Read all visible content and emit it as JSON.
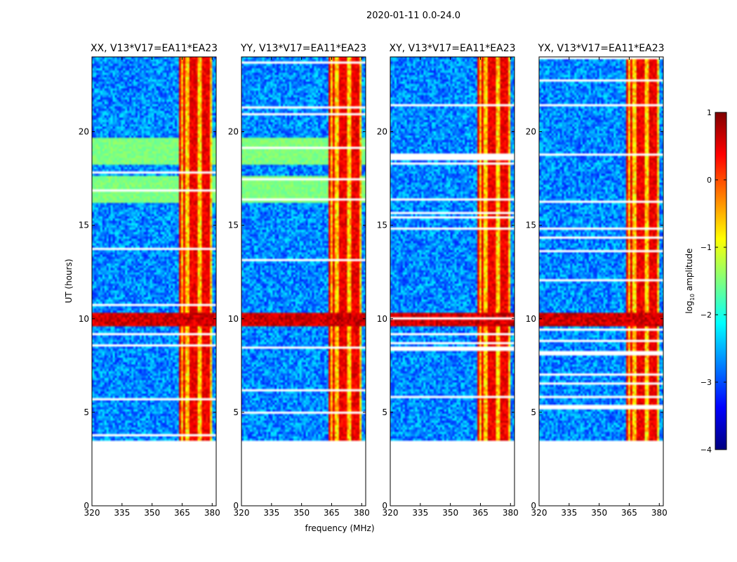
{
  "chart_data": {
    "type": "heatmap",
    "suptitle": "2020-01-11 0.0-24.0",
    "xlabel": "frequency (MHz)",
    "ylabel": "UT (hours)",
    "xlim": [
      320,
      382
    ],
    "ylim": [
      0,
      24
    ],
    "xticks": [
      320,
      335,
      350,
      365,
      380
    ],
    "yticks": [
      0,
      5,
      10,
      15,
      20
    ],
    "data_start_hour": 3.5,
    "rfi_band_mhz": [
      363,
      380
    ],
    "rfi_channels_mhz": [
      363.5,
      366,
      369.5,
      372,
      375.5,
      378
    ],
    "strong_event_hours": [
      9.6,
      10.3
    ],
    "colorbar": {
      "label": "log",
      "label_sub": "10",
      "label_rest": " amplitude",
      "range": [
        -4,
        1
      ],
      "ticks": [
        1,
        0,
        -1,
        -2,
        -3,
        -4
      ],
      "tick_labels": [
        "1",
        "0",
        "−1",
        "−2",
        "−3",
        "−4"
      ],
      "colormap": "jet"
    },
    "panels": [
      {
        "title": "XX, V13*V17=EA11*EA23",
        "band_hours": [
          [
            16.2,
            17.6
          ],
          [
            18.2,
            19.7
          ]
        ]
      },
      {
        "title": "YY, V13*V17=EA11*EA23",
        "band_hours": [
          [
            16.2,
            17.6
          ],
          [
            18.2,
            19.7
          ]
        ]
      },
      {
        "title": "XY, V13*V17=EA11*EA23",
        "band_hours": []
      },
      {
        "title": "YX, V13*V17=EA11*EA23",
        "band_hours": []
      }
    ]
  }
}
